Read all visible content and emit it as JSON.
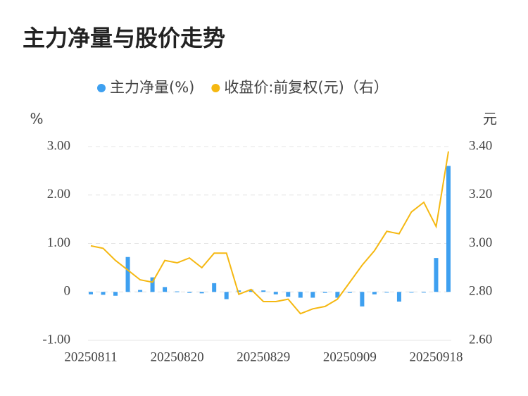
{
  "chart_data": {
    "type": "bar",
    "title": "主力净量与股价走势",
    "y_unit": "%",
    "y2_unit": "元",
    "categories": [
      "20250811",
      null,
      null,
      null,
      null,
      null,
      null,
      "20250820",
      null,
      null,
      null,
      null,
      null,
      null,
      "20250829",
      null,
      null,
      null,
      null,
      null,
      null,
      "20250909",
      null,
      null,
      null,
      null,
      null,
      null,
      "20250918",
      null
    ],
    "series": [
      {
        "name": "主力净量(%)",
        "type": "bar",
        "color": "#3ea0f0",
        "values": [
          -0.05,
          -0.06,
          -0.08,
          0.72,
          0.04,
          0.3,
          0.1,
          0.01,
          -0.02,
          -0.03,
          0.18,
          -0.15,
          0.03,
          0.05,
          0.03,
          -0.05,
          -0.1,
          -0.12,
          -0.12,
          -0.02,
          -0.12,
          -0.02,
          -0.3,
          -0.05,
          -0.01,
          -0.2,
          -0.01,
          -0.01,
          0.7,
          2.6
        ]
      },
      {
        "name": "收盘价:前复权(元)（右）",
        "type": "line",
        "axis": "y2",
        "color": "#f5b812",
        "values": [
          2.99,
          2.98,
          2.93,
          2.89,
          2.85,
          2.84,
          2.93,
          2.92,
          2.94,
          2.9,
          2.96,
          2.96,
          2.79,
          2.81,
          2.76,
          2.76,
          2.77,
          2.71,
          2.73,
          2.74,
          2.77,
          2.84,
          2.91,
          2.97,
          3.05,
          3.04,
          3.13,
          3.17,
          3.07,
          3.38
        ]
      }
    ],
    "ylim": [
      -1,
      3
    ],
    "yticks": [
      {
        "value": -1,
        "label": "-1.00"
      },
      0,
      {
        "value": 1,
        "label": "1.00"
      },
      {
        "value": 2,
        "label": "2.00"
      },
      {
        "value": 3,
        "label": "3.00"
      }
    ],
    "y2lim": [
      2.6,
      3.4
    ],
    "y2ticks": [
      {
        "value": 2.6,
        "label": "2.60"
      },
      {
        "value": 2.8,
        "label": "2.80"
      },
      {
        "value": 3.0,
        "label": "3.00"
      },
      {
        "value": 3.2,
        "label": "3.20"
      },
      {
        "value": 3.4,
        "label": "3.40"
      }
    ],
    "grid": true
  }
}
